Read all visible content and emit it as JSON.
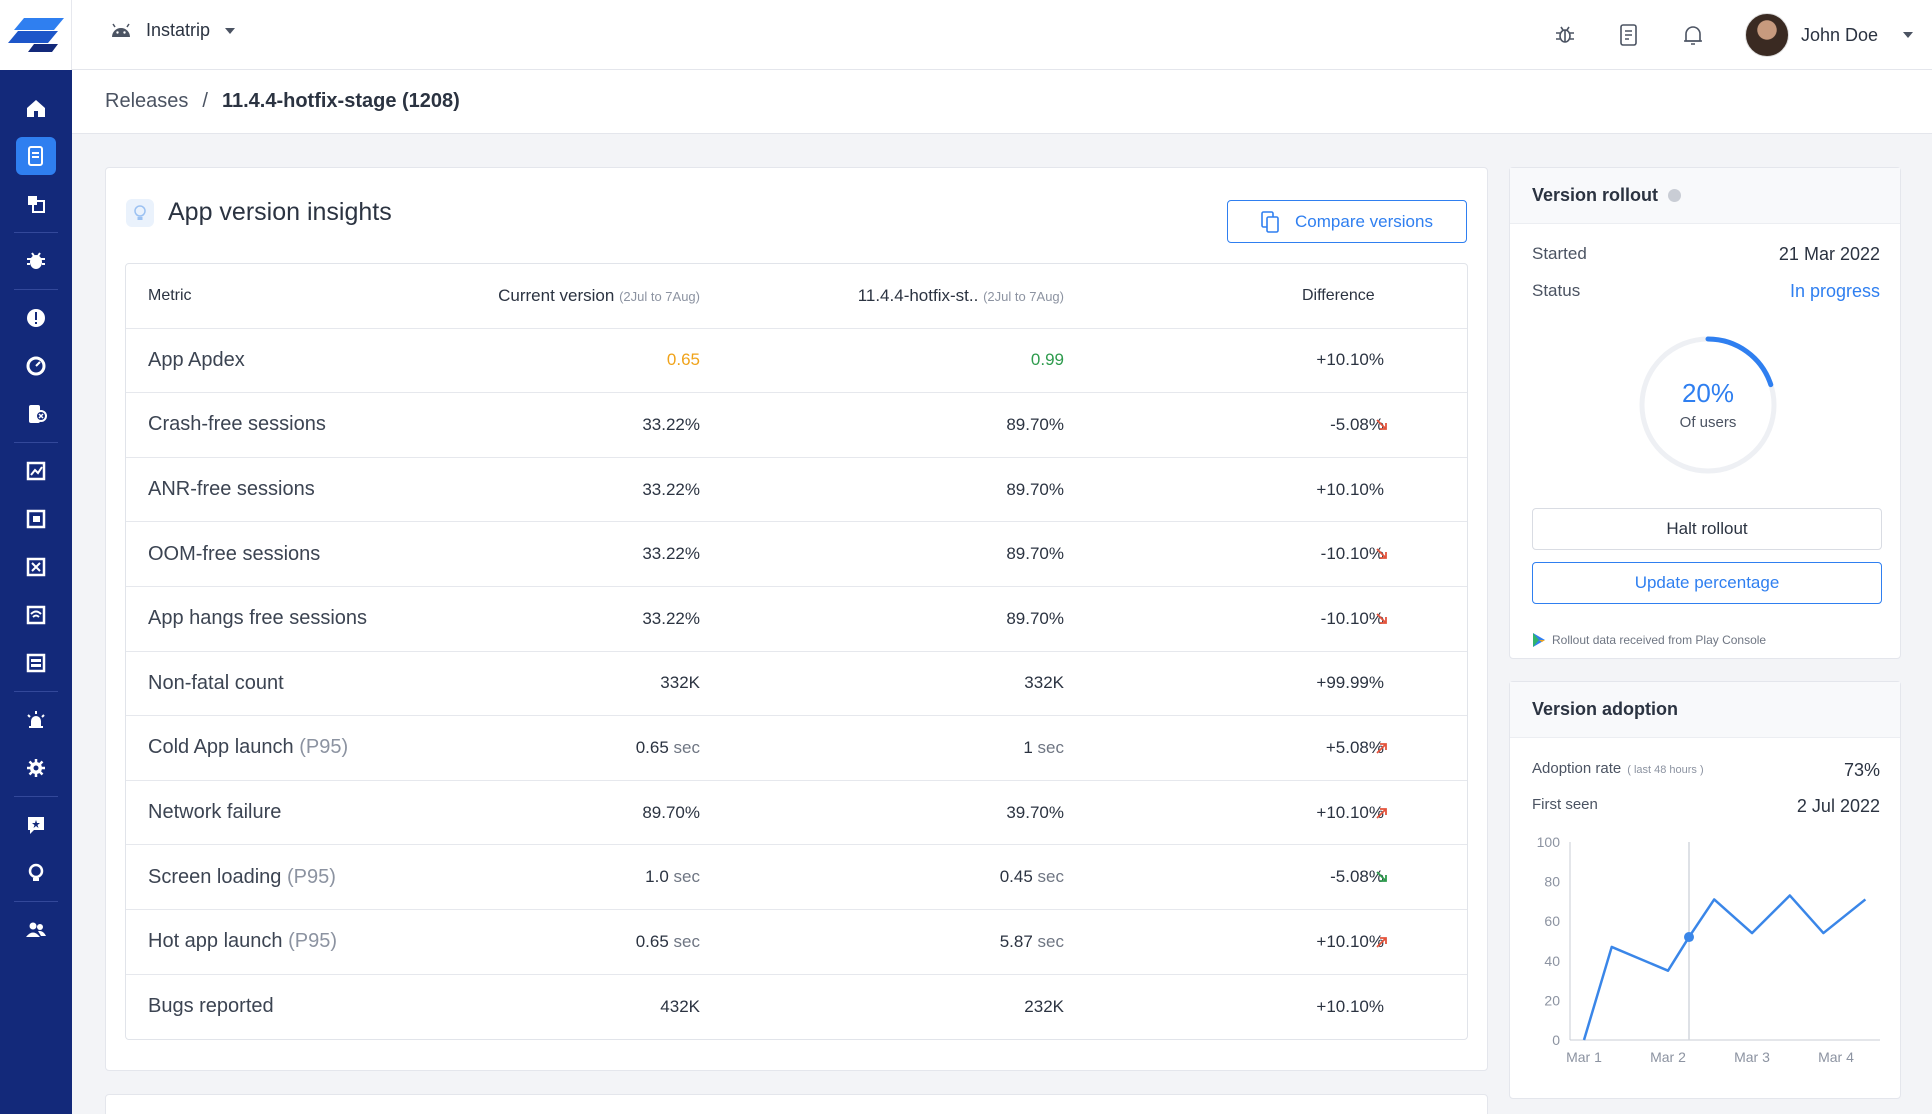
{
  "app": {
    "name": "Instatrip"
  },
  "user": {
    "name": "John Doe"
  },
  "breadcrumb": {
    "root": "Releases",
    "separator": "/",
    "current": "11.4.4-hotfix-stage (1208)"
  },
  "insights": {
    "title": "App version insights",
    "compare_label": "Compare versions",
    "headers": {
      "metric": "Metric",
      "current": "Current version",
      "current_range": "(2Jul to 7Aug)",
      "other": "11.4.4-hotfix-st..",
      "other_range": "(2Jul to 7Aug)",
      "difference": "Difference"
    },
    "rows": [
      {
        "metric": "App Apdex",
        "qualifier": "",
        "current": "0.65",
        "current_unit": "",
        "other": "0.99",
        "other_unit": "",
        "diff": "+10.10%",
        "trend": "none"
      },
      {
        "metric": "Crash-free sessions",
        "qualifier": "",
        "current": "33.22%",
        "current_unit": "",
        "other": "89.70%",
        "other_unit": "",
        "diff": "-5.08%",
        "trend": "down-red"
      },
      {
        "metric": "ANR-free sessions",
        "qualifier": "",
        "current": "33.22%",
        "current_unit": "",
        "other": "89.70%",
        "other_unit": "",
        "diff": "+10.10%",
        "trend": "none"
      },
      {
        "metric": "OOM-free sessions",
        "qualifier": "",
        "current": "33.22%",
        "current_unit": "",
        "other": "89.70%",
        "other_unit": "",
        "diff": "-10.10%",
        "trend": "down-red"
      },
      {
        "metric": "App hangs free sessions",
        "qualifier": "",
        "current": "33.22%",
        "current_unit": "",
        "other": "89.70%",
        "other_unit": "",
        "diff": "-10.10%",
        "trend": "down-red"
      },
      {
        "metric": "Non-fatal count",
        "qualifier": "",
        "current": "332K",
        "current_unit": "",
        "other": "332K",
        "other_unit": "",
        "diff": "+99.99%",
        "trend": "none"
      },
      {
        "metric": "Cold App launch",
        "qualifier": "(P95)",
        "current": "0.65",
        "current_unit": "sec",
        "other": "1",
        "other_unit": "sec",
        "diff": "+5.08%",
        "trend": "up-red"
      },
      {
        "metric": "Network failure",
        "qualifier": "",
        "current": "89.70%",
        "current_unit": "",
        "other": "39.70%",
        "other_unit": "",
        "diff": "+10.10%",
        "trend": "up-red"
      },
      {
        "metric": "Screen loading",
        "qualifier": "(P95)",
        "current": "1.0",
        "current_unit": "sec",
        "other": "0.45",
        "other_unit": "sec",
        "diff": "-5.08%",
        "trend": "down-green"
      },
      {
        "metric": "Hot app launch",
        "qualifier": "(P95)",
        "current": "0.65",
        "current_unit": "sec",
        "other": "5.87",
        "other_unit": "sec",
        "diff": "+10.10%",
        "trend": "up-red"
      },
      {
        "metric": "Bugs reported",
        "qualifier": "",
        "current": "432K",
        "current_unit": "",
        "other": "232K",
        "other_unit": "",
        "diff": "+10.10%",
        "trend": "none"
      }
    ]
  },
  "rollout": {
    "title": "Version rollout",
    "started_label": "Started",
    "started_value": "21 Mar 2022",
    "status_label": "Status",
    "status_value": "In progress",
    "percent_label": "20%",
    "percent_value": 20,
    "percent_sub": "Of users",
    "halt_label": "Halt rollout",
    "update_label": "Update percentage",
    "note": "Rollout data received from Play Console"
  },
  "adoption": {
    "title": "Version adoption",
    "rate_label": "Adoption rate",
    "rate_window": "( last 48 hours )",
    "rate_value": "73%",
    "first_seen_label": "First seen",
    "first_seen_value": "2 Jul 2022"
  },
  "chart_data": {
    "type": "line",
    "title": "",
    "xlabel": "",
    "ylabel": "",
    "ylim": [
      0,
      100
    ],
    "yticks": [
      "0",
      "20",
      "40",
      "60",
      "80",
      "100"
    ],
    "xticks": [
      "Mar 1",
      "Mar 2",
      "Mar 3",
      "Mar 4"
    ],
    "x": [
      0.0,
      0.33,
      1.0,
      1.25,
      1.55,
      2.0,
      2.45,
      2.85,
      3.35
    ],
    "values": [
      0,
      47,
      35,
      52,
      71,
      54,
      73,
      54,
      71
    ],
    "highlight_index": 3,
    "grid": "vertical-marker",
    "color": "#3a86e8"
  },
  "colors": {
    "sidebar": "#13297a",
    "accent": "#2f7ff0",
    "orange": "#f0a31a",
    "green": "#2e9b4d",
    "red": "#e4543c"
  }
}
